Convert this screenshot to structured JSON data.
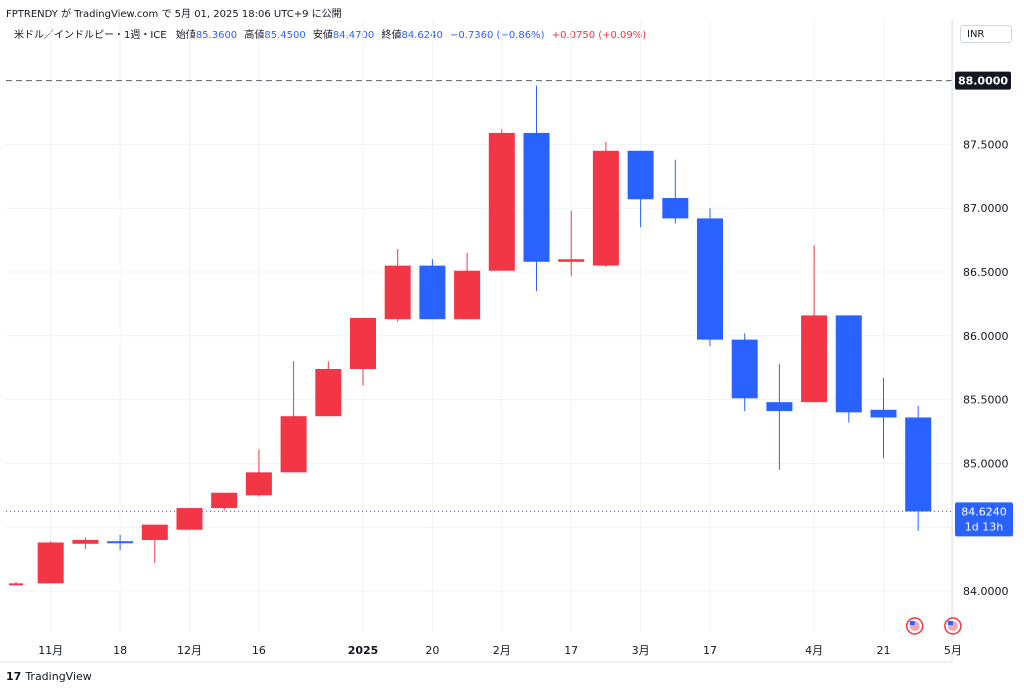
{
  "header": {
    "text": "FPTRENDY が TradingView.com で 5月 01, 2025 18:06 UTC+9 に公開"
  },
  "legend": {
    "symbol": "米ドル／インドルピー・1週・ICE",
    "open_label": "始値",
    "open": "85.3600",
    "high_label": "高値",
    "high": "85.4500",
    "low_label": "安値",
    "low": "84.4700",
    "close_label": "終値",
    "close": "84.6240",
    "change": "−0.7360 (−0.86%)",
    "change2": "+0.0750 (+0.09%)"
  },
  "currency": "INR",
  "footer": {
    "logo": "17",
    "brand": "TradingView"
  },
  "colors": {
    "up": "#f23645",
    "down": "#2962ff",
    "grid": "#f0f3fa",
    "axis_text": "#131722"
  },
  "chart_data": {
    "type": "candlestick",
    "y_ticks": [
      "84.0000",
      "84.5000",
      "85.0000",
      "85.5000",
      "86.0000",
      "86.5000",
      "87.0000",
      "87.5000"
    ],
    "y_tick_values": [
      84.0,
      84.5,
      85.0,
      85.5,
      86.0,
      86.5,
      87.0,
      87.5
    ],
    "ylim": [
      83.75,
      88.45
    ],
    "x_labels": [
      {
        "i": 1,
        "label": "11月"
      },
      {
        "i": 3,
        "label": "18"
      },
      {
        "i": 5,
        "label": "12月"
      },
      {
        "i": 7,
        "label": "16"
      },
      {
        "i": 10,
        "label": "2025"
      },
      {
        "i": 12,
        "label": "20"
      },
      {
        "i": 14,
        "label": "2月"
      },
      {
        "i": 16,
        "label": "17"
      },
      {
        "i": 18,
        "label": "3月"
      },
      {
        "i": 20,
        "label": "17"
      },
      {
        "i": 23,
        "label": "4月"
      },
      {
        "i": 25,
        "label": "21"
      },
      {
        "i": 27,
        "label": "5月"
      }
    ],
    "candles": [
      {
        "o": 84.06,
        "h": 84.07,
        "l": 84.05,
        "c": 84.06
      },
      {
        "o": 84.06,
        "h": 84.39,
        "l": 84.06,
        "c": 84.38
      },
      {
        "o": 84.37,
        "h": 84.42,
        "l": 84.33,
        "c": 84.4
      },
      {
        "o": 84.39,
        "h": 84.44,
        "l": 84.32,
        "c": 84.38
      },
      {
        "o": 84.4,
        "h": 84.52,
        "l": 84.22,
        "c": 84.52
      },
      {
        "o": 84.48,
        "h": 84.65,
        "l": 84.48,
        "c": 84.65
      },
      {
        "o": 84.65,
        "h": 84.76,
        "l": 84.63,
        "c": 84.77
      },
      {
        "o": 84.75,
        "h": 85.11,
        "l": 84.74,
        "c": 84.93
      },
      {
        "o": 84.93,
        "h": 85.8,
        "l": 84.93,
        "c": 85.37
      },
      {
        "o": 85.37,
        "h": 85.8,
        "l": 85.37,
        "c": 85.74
      },
      {
        "o": 85.74,
        "h": 86.14,
        "l": 85.61,
        "c": 86.14
      },
      {
        "o": 86.13,
        "h": 86.68,
        "l": 86.11,
        "c": 86.55
      },
      {
        "o": 86.55,
        "h": 86.6,
        "l": 86.13,
        "c": 86.13
      },
      {
        "o": 86.13,
        "h": 86.65,
        "l": 86.13,
        "c": 86.51
      },
      {
        "o": 86.51,
        "h": 87.62,
        "l": 86.51,
        "c": 87.59
      },
      {
        "o": 87.59,
        "h": 87.96,
        "l": 86.35,
        "c": 86.58
      },
      {
        "o": 86.58,
        "h": 86.98,
        "l": 86.47,
        "c": 86.6
      },
      {
        "o": 86.55,
        "h": 87.52,
        "l": 86.54,
        "c": 87.45
      },
      {
        "o": 87.45,
        "h": 87.45,
        "l": 86.85,
        "c": 87.07
      },
      {
        "o": 87.08,
        "h": 87.38,
        "l": 86.88,
        "c": 86.92
      },
      {
        "o": 86.92,
        "h": 87.0,
        "l": 85.92,
        "c": 85.97
      },
      {
        "o": 85.97,
        "h": 86.02,
        "l": 85.41,
        "c": 85.51
      },
      {
        "o": 85.48,
        "h": 85.78,
        "l": 84.95,
        "c": 85.41
      },
      {
        "o": 85.48,
        "h": 86.71,
        "l": 85.48,
        "c": 86.16
      },
      {
        "o": 86.16,
        "h": 86.16,
        "l": 85.32,
        "c": 85.4
      },
      {
        "o": 85.42,
        "h": 85.67,
        "l": 85.04,
        "c": 85.36
      },
      {
        "o": 85.36,
        "h": 85.45,
        "l": 84.47,
        "c": 84.624
      }
    ],
    "ref_line": {
      "value": 88.0,
      "label": "88.0000"
    },
    "last_price": {
      "value": 84.624,
      "label": "84.6240",
      "countdown": "1d 13h"
    }
  }
}
